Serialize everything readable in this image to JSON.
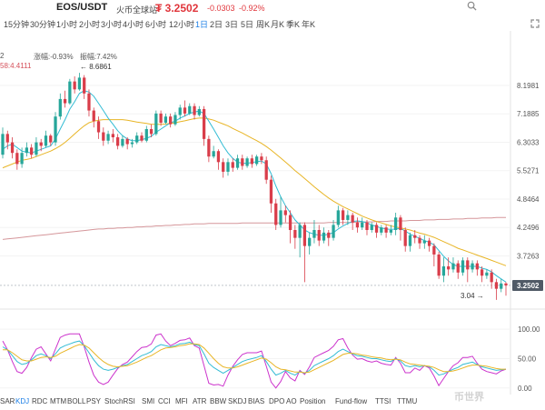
{
  "header": {
    "pair": "EOS/USDT",
    "exchange": "火币全球站",
    "price": "₮ 3.2502",
    "change": "-0.0303",
    "change_pct": "-0.92%",
    "search_icon": "search-icon",
    "fullscreen_icon": "expand-icon"
  },
  "timeframes": {
    "items": [
      "15分钟",
      "30分钟",
      "1小时",
      "2小时",
      "3小时",
      "4小时",
      "6小时",
      "12小时",
      "1日",
      "2日",
      "3日",
      "5日",
      "周K",
      "月K",
      "季K",
      "年K"
    ],
    "active": "1日"
  },
  "info": {
    "line1_prefix": "2",
    "change_label": "涨幅:-0.93%",
    "amplitude_label": "振幅:7.42%",
    "ma_label": "58:4.4111",
    "high_marker": "← 8.6861",
    "low_marker": "3.04 →"
  },
  "price_axis": {
    "labels": [
      "8.1981",
      "7.1885",
      "6.3033",
      "5.5271",
      "4.8464",
      "4.2496",
      "3.7263",
      "3.2502"
    ],
    "current": "3.2502"
  },
  "indicator_axis": {
    "labels": [
      "100.00",
      "50.00",
      "0.00"
    ]
  },
  "indicators": {
    "items": [
      "SAR",
      "KDJ",
      "RDC",
      "MTM",
      "BOLL",
      "PSY",
      "StochRSI",
      "SMI",
      "CCI",
      "MFI",
      "ATR",
      "BBW",
      "SKDJ",
      "BIAS",
      "DPO",
      "AO",
      "Position",
      "Fund-flow",
      "TTSI",
      "TTMU"
    ],
    "active": "KDJ"
  },
  "watermark": "币世界",
  "colors": {
    "up": "#26a69a",
    "down": "#d93d4a",
    "accent": "#1c7fe6",
    "ma_short": "#33bcd4",
    "ma_long": "#e8b526",
    "ma_longest": "#d5969a",
    "kdj_j": "#cc33cc"
  },
  "chart_data": {
    "type": "candlestick",
    "scale": "log",
    "ylim": [
      2.95,
      9.7
    ],
    "candles": [
      [
        5.95,
        6.55,
        6.75,
        5.85
      ],
      [
        6.55,
        6.3,
        6.65,
        6.1
      ],
      [
        6.3,
        6.0,
        6.45,
        5.85
      ],
      [
        6.0,
        5.7,
        6.1,
        5.55
      ],
      [
        5.7,
        6.0,
        6.15,
        5.6
      ],
      [
        6.0,
        6.15,
        6.3,
        5.9
      ],
      [
        6.15,
        5.95,
        6.25,
        5.85
      ],
      [
        5.95,
        6.3,
        6.45,
        5.9
      ],
      [
        6.3,
        6.2,
        6.4,
        6.05
      ],
      [
        6.2,
        6.5,
        6.65,
        6.15
      ],
      [
        6.5,
        6.3,
        6.55,
        6.2
      ],
      [
        6.3,
        7.1,
        7.25,
        6.2
      ],
      [
        7.1,
        7.7,
        7.9,
        7.0
      ],
      [
        7.7,
        7.55,
        8.0,
        7.4
      ],
      [
        7.55,
        8.35,
        8.45,
        7.5
      ],
      [
        8.35,
        8.05,
        8.55,
        7.9
      ],
      [
        8.05,
        8.5,
        8.69,
        8.0
      ],
      [
        8.5,
        7.9,
        8.6,
        7.7
      ],
      [
        7.9,
        7.3,
        8.05,
        7.1
      ],
      [
        7.3,
        6.95,
        7.4,
        6.75
      ],
      [
        6.95,
        6.6,
        7.1,
        6.4
      ],
      [
        6.6,
        6.35,
        6.75,
        6.2
      ],
      [
        6.35,
        6.55,
        6.65,
        6.25
      ],
      [
        6.55,
        6.45,
        6.7,
        6.3
      ],
      [
        6.45,
        6.2,
        6.55,
        6.1
      ],
      [
        6.2,
        6.4,
        6.5,
        6.15
      ],
      [
        6.4,
        6.25,
        6.45,
        6.1
      ],
      [
        6.25,
        6.3,
        6.4,
        6.15
      ],
      [
        6.3,
        6.5,
        6.6,
        6.25
      ],
      [
        6.5,
        6.35,
        6.6,
        6.3
      ],
      [
        6.35,
        6.7,
        6.8,
        6.3
      ],
      [
        6.7,
        6.55,
        6.85,
        6.45
      ],
      [
        6.55,
        7.2,
        7.3,
        6.5
      ],
      [
        7.2,
        6.9,
        7.3,
        6.8
      ],
      [
        6.9,
        7.1,
        7.2,
        6.85
      ],
      [
        7.1,
        6.85,
        7.2,
        6.75
      ],
      [
        6.85,
        7.15,
        7.25,
        6.8
      ],
      [
        7.15,
        7.4,
        7.5,
        7.0
      ],
      [
        7.4,
        7.2,
        7.65,
        7.1
      ],
      [
        7.2,
        7.45,
        7.55,
        7.15
      ],
      [
        7.45,
        7.15,
        7.55,
        7.0
      ],
      [
        7.15,
        7.35,
        7.45,
        7.1
      ],
      [
        7.35,
        6.4,
        7.45,
        6.2
      ],
      [
        6.4,
        5.9,
        6.5,
        5.75
      ],
      [
        5.9,
        6.05,
        6.2,
        5.85
      ],
      [
        6.05,
        5.75,
        6.1,
        5.55
      ],
      [
        5.75,
        5.5,
        5.85,
        5.35
      ],
      [
        5.5,
        5.75,
        5.85,
        5.4
      ],
      [
        5.75,
        5.6,
        5.85,
        5.5
      ],
      [
        5.6,
        5.85,
        5.95,
        5.55
      ],
      [
        5.85,
        5.65,
        5.95,
        5.55
      ],
      [
        5.65,
        5.85,
        5.9,
        5.6
      ],
      [
        5.85,
        5.7,
        5.95,
        5.6
      ],
      [
        5.7,
        5.9,
        5.95,
        5.65
      ],
      [
        5.9,
        5.8,
        6.0,
        5.7
      ],
      [
        5.8,
        5.3,
        5.9,
        5.2
      ],
      [
        5.3,
        4.75,
        5.4,
        4.55
      ],
      [
        4.75,
        4.3,
        4.85,
        4.2
      ],
      [
        4.3,
        4.6,
        4.9,
        4.25
      ],
      [
        4.6,
        4.5,
        4.7,
        4.35
      ],
      [
        4.5,
        4.2,
        4.6,
        3.95
      ],
      [
        4.2,
        4.05,
        4.3,
        3.85
      ],
      [
        4.05,
        4.3,
        4.35,
        3.7
      ],
      [
        4.3,
        3.9,
        4.35,
        3.3
      ],
      [
        3.9,
        4.05,
        4.15,
        3.75
      ],
      [
        4.05,
        4.2,
        4.4,
        3.95
      ],
      [
        4.2,
        4.0,
        4.3,
        3.9
      ],
      [
        4.0,
        4.15,
        4.25,
        3.95
      ],
      [
        4.15,
        4.05,
        4.2,
        3.9
      ],
      [
        4.05,
        4.3,
        4.4,
        4.0
      ],
      [
        4.3,
        4.6,
        4.7,
        4.25
      ],
      [
        4.6,
        4.4,
        4.65,
        4.3
      ],
      [
        4.4,
        4.5,
        4.6,
        4.3
      ],
      [
        4.5,
        4.35,
        4.55,
        4.2
      ],
      [
        4.35,
        4.25,
        4.45,
        4.15
      ],
      [
        4.25,
        4.35,
        4.45,
        4.2
      ],
      [
        4.35,
        4.2,
        4.4,
        4.1
      ],
      [
        4.2,
        4.3,
        4.35,
        4.15
      ],
      [
        4.3,
        4.15,
        4.35,
        4.05
      ],
      [
        4.15,
        4.25,
        4.3,
        4.1
      ],
      [
        4.25,
        4.15,
        4.3,
        4.05
      ],
      [
        4.15,
        4.2,
        4.3,
        4.1
      ],
      [
        4.2,
        4.45,
        4.55,
        4.1
      ],
      [
        4.45,
        4.2,
        4.5,
        4.0
      ],
      [
        4.2,
        3.9,
        4.25,
        3.8
      ],
      [
        3.9,
        4.1,
        4.15,
        3.8
      ],
      [
        4.1,
        4.05,
        4.2,
        3.95
      ],
      [
        4.05,
        3.95,
        4.1,
        3.85
      ],
      [
        3.95,
        4.0,
        4.1,
        3.85
      ],
      [
        4.0,
        3.9,
        4.05,
        3.8
      ],
      [
        3.9,
        3.75,
        3.95,
        3.55
      ],
      [
        3.75,
        3.4,
        3.8,
        3.35
      ],
      [
        3.4,
        3.55,
        3.7,
        3.3
      ],
      [
        3.55,
        3.5,
        3.7,
        3.4
      ],
      [
        3.5,
        3.6,
        3.7,
        3.45
      ],
      [
        3.6,
        3.45,
        3.65,
        3.35
      ],
      [
        3.45,
        3.65,
        3.7,
        3.4
      ],
      [
        3.65,
        3.5,
        3.7,
        3.3
      ],
      [
        3.5,
        3.6,
        3.65,
        3.45
      ],
      [
        3.6,
        3.5,
        3.65,
        3.4
      ],
      [
        3.5,
        3.4,
        3.55,
        3.3
      ],
      [
        3.4,
        3.45,
        3.5,
        3.35
      ],
      [
        3.45,
        3.3,
        3.5,
        3.2
      ],
      [
        3.3,
        3.2,
        3.35,
        3.04
      ],
      [
        3.2,
        3.28,
        3.35,
        3.15
      ],
      [
        3.28,
        3.25,
        3.3,
        3.1
      ]
    ],
    "ma_short": [
      6.1,
      6.2,
      6.25,
      6.15,
      6.05,
      6.02,
      6.0,
      6.05,
      6.1,
      6.15,
      6.2,
      6.4,
      6.7,
      7.0,
      7.35,
      7.6,
      7.9,
      8.0,
      7.95,
      7.8,
      7.55,
      7.3,
      7.05,
      6.85,
      6.65,
      6.5,
      6.4,
      6.35,
      6.35,
      6.38,
      6.42,
      6.48,
      6.6,
      6.7,
      6.8,
      6.9,
      6.95,
      7.05,
      7.12,
      7.2,
      7.25,
      7.28,
      7.2,
      6.95,
      6.7,
      6.45,
      6.2,
      6.0,
      5.85,
      5.75,
      5.72,
      5.72,
      5.74,
      5.76,
      5.78,
      5.7,
      5.45,
      5.15,
      4.9,
      4.7,
      4.55,
      4.4,
      4.3,
      4.2,
      4.15,
      4.12,
      4.1,
      4.1,
      4.12,
      4.15,
      4.22,
      4.28,
      4.33,
      4.37,
      4.38,
      4.37,
      4.34,
      4.3,
      4.27,
      4.24,
      4.22,
      4.21,
      4.22,
      4.23,
      4.18,
      4.12,
      4.08,
      4.04,
      4.0,
      3.97,
      3.92,
      3.82,
      3.72,
      3.64,
      3.58,
      3.55,
      3.55,
      3.55,
      3.55,
      3.55,
      3.52,
      3.5,
      3.46,
      3.4,
      3.35,
      3.3
    ],
    "ma_long": [
      5.6,
      5.65,
      5.7,
      5.75,
      5.8,
      5.82,
      5.85,
      5.9,
      5.95,
      6.0,
      6.05,
      6.12,
      6.2,
      6.3,
      6.42,
      6.55,
      6.68,
      6.8,
      6.9,
      6.95,
      6.98,
      7.0,
      7.0,
      7.0,
      7.0,
      7.0,
      6.98,
      6.95,
      6.92,
      6.9,
      6.88,
      6.85,
      6.85,
      6.85,
      6.86,
      6.88,
      6.9,
      6.93,
      6.96,
      7.0,
      7.03,
      7.05,
      7.05,
      7.02,
      6.98,
      6.92,
      6.86,
      6.8,
      6.72,
      6.65,
      6.58,
      6.5,
      6.42,
      6.35,
      6.27,
      6.18,
      6.08,
      5.97,
      5.86,
      5.75,
      5.64,
      5.53,
      5.43,
      5.33,
      5.23,
      5.13,
      5.04,
      4.95,
      4.87,
      4.8,
      4.74,
      4.68,
      4.63,
      4.58,
      4.53,
      4.48,
      4.44,
      4.4,
      4.37,
      4.34,
      4.31,
      4.28,
      4.26,
      4.24,
      4.22,
      4.2,
      4.17,
      4.14,
      4.12,
      4.09,
      4.06,
      4.02,
      3.98,
      3.94,
      3.9,
      3.86,
      3.83,
      3.8,
      3.77,
      3.74,
      3.71,
      3.68,
      3.65,
      3.62,
      3.59,
      3.56
    ],
    "ma_longest": [
      4.02,
      4.03,
      4.04,
      4.05,
      4.06,
      4.07,
      4.08,
      4.09,
      4.1,
      4.11,
      4.12,
      4.13,
      4.14,
      4.15,
      4.16,
      4.17,
      4.18,
      4.19,
      4.2,
      4.21,
      4.22,
      4.22,
      4.23,
      4.23,
      4.24,
      4.24,
      4.25,
      4.25,
      4.26,
      4.26,
      4.27,
      4.27,
      4.28,
      4.28,
      4.29,
      4.29,
      4.3,
      4.3,
      4.31,
      4.31,
      4.32,
      4.32,
      4.32,
      4.33,
      4.33,
      4.33,
      4.33,
      4.33,
      4.33,
      4.33,
      4.34,
      4.34,
      4.34,
      4.34,
      4.34,
      4.34,
      4.34,
      4.34,
      4.34,
      4.34,
      4.34,
      4.34,
      4.34,
      4.34,
      4.34,
      4.34,
      4.34,
      4.34,
      4.35,
      4.35,
      4.35,
      4.35,
      4.35,
      4.35,
      4.36,
      4.36,
      4.36,
      4.36,
      4.37,
      4.37,
      4.37,
      4.38,
      4.38,
      4.38,
      4.38,
      4.39,
      4.39,
      4.39,
      4.4,
      4.4,
      4.4,
      4.41,
      4.41,
      4.41,
      4.42,
      4.42,
      4.42,
      4.43,
      4.43,
      4.43,
      4.44,
      4.44,
      4.44,
      4.45,
      4.45,
      4.45
    ],
    "kdj": {
      "ylim": [
        -5,
        125
      ],
      "k": [
        70,
        65,
        55,
        45,
        40,
        42,
        48,
        55,
        58,
        55,
        50,
        58,
        68,
        72,
        75,
        78,
        80,
        72,
        60,
        48,
        38,
        32,
        30,
        32,
        35,
        38,
        40,
        45,
        50,
        55,
        58,
        62,
        70,
        74,
        72,
        70,
        72,
        75,
        76,
        78,
        74,
        72,
        58,
        42,
        35,
        30,
        25,
        30,
        35,
        40,
        45,
        48,
        50,
        52,
        55,
        45,
        32,
        22,
        25,
        30,
        25,
        22,
        28,
        25,
        30,
        38,
        42,
        46,
        50,
        55,
        62,
        66,
        62,
        58,
        55,
        54,
        52,
        50,
        50,
        48,
        46,
        45,
        50,
        46,
        38,
        36,
        38,
        36,
        38,
        36,
        30,
        22,
        24,
        28,
        32,
        35,
        40,
        42,
        44,
        40,
        36,
        34,
        32,
        30,
        31,
        32
      ],
      "d": [
        65,
        65,
        60,
        54,
        48,
        46,
        46,
        49,
        52,
        53,
        52,
        54,
        59,
        63,
        67,
        71,
        74,
        73,
        68,
        60,
        52,
        45,
        40,
        37,
        36,
        37,
        38,
        41,
        44,
        48,
        52,
        55,
        60,
        65,
        68,
        69,
        70,
        72,
        73,
        75,
        75,
        74,
        68,
        59,
        50,
        42,
        36,
        34,
        34,
        36,
        39,
        42,
        45,
        48,
        51,
        49,
        43,
        36,
        32,
        31,
        29,
        27,
        27,
        26,
        27,
        31,
        35,
        39,
        43,
        47,
        52,
        57,
        59,
        59,
        58,
        56,
        55,
        53,
        52,
        51,
        49,
        48,
        49,
        48,
        44,
        41,
        40,
        39,
        38,
        37,
        35,
        31,
        28,
        28,
        29,
        31,
        34,
        37,
        39,
        39,
        38,
        37,
        35,
        33,
        32,
        32
      ],
      "j": [
        80,
        65,
        45,
        28,
        25,
        35,
        52,
        66,
        70,
        58,
        46,
        66,
        86,
        90,
        92,
        92,
        92,
        70,
        44,
        22,
        10,
        6,
        10,
        22,
        33,
        40,
        44,
        53,
        62,
        69,
        70,
        75,
        90,
        92,
        80,
        72,
        76,
        81,
        82,
        85,
        72,
        68,
        38,
        8,
        5,
        6,
        3,
        22,
        37,
        48,
        57,
        60,
        60,
        60,
        63,
        37,
        10,
        0,
        11,
        28,
        17,
        12,
        30,
        23,
        36,
        52,
        56,
        60,
        64,
        71,
        82,
        84,
        68,
        56,
        49,
        50,
        46,
        44,
        46,
        42,
        40,
        39,
        52,
        42,
        26,
        26,
        34,
        30,
        38,
        34,
        20,
        4,
        16,
        28,
        38,
        43,
        52,
        52,
        54,
        42,
        32,
        28,
        26,
        24,
        29,
        32
      ]
    }
  }
}
